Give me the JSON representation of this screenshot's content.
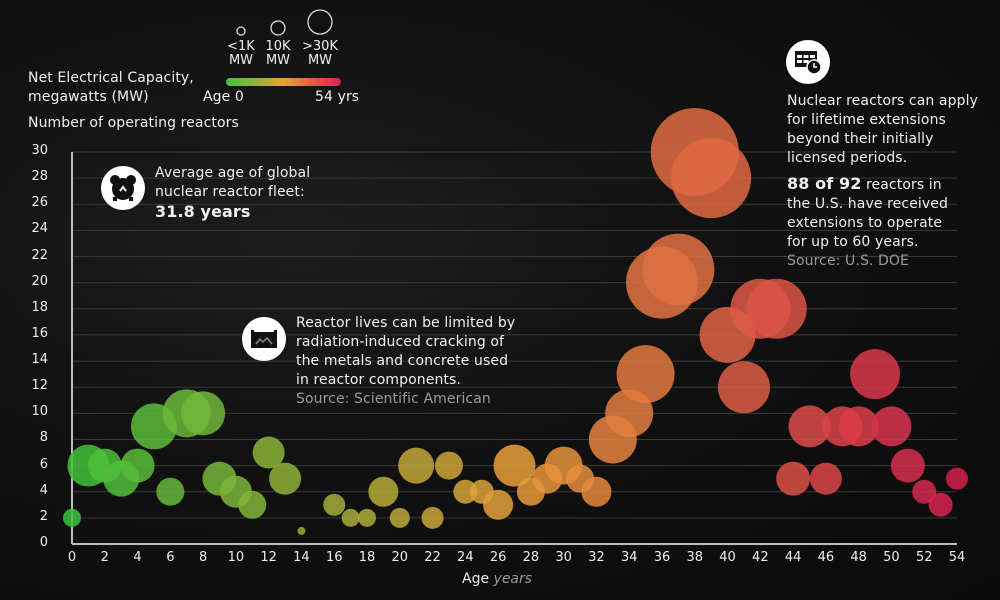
{
  "legend": {
    "size_title_line1": "Net Electrical Capacity,",
    "size_title_line2": "megawatts (MW)",
    "sizes": [
      {
        "label_line1": "<1K",
        "label_line2": "MW",
        "r": 4
      },
      {
        "label_line1": "10K",
        "label_line2": "MW",
        "r": 7
      },
      {
        "label_line1": ">30K",
        "label_line2": "MW",
        "r": 12
      }
    ],
    "color_min_label": "Age 0",
    "color_max_label": "54 yrs",
    "colors": {
      "start": "#3ec23a",
      "mid": "#e8a03a",
      "end": "#d6214f"
    }
  },
  "annotations": {
    "avg_age": {
      "icon": "alarm-clock-icon",
      "line1": "Average age of global",
      "line2": "nuclear reactor fleet:",
      "value": "31.8 years"
    },
    "cracking": {
      "icon": "cracked-metal-icon",
      "line1": "Reactor lives can be limited by",
      "line2": "radiation-induced cracking of",
      "line3": "the metals and concrete used",
      "line4": "in reactor components.",
      "source": "Source: Scientific American"
    },
    "extensions": {
      "icon": "calendar-clock-icon",
      "line1": "Nuclear reactors can apply",
      "line2": "for lifetime extensions",
      "line3": "beyond their initially",
      "line4": "licensed periods.",
      "bold": "88 of 92",
      "line5_rest": " reactors in",
      "line6": "the U.S. have received",
      "line7": "extensions to operate",
      "line8": "for up to 60 years.",
      "source": "Source: U.S. DOE"
    }
  },
  "chart_data": {
    "type": "scatter",
    "subtype": "bubble",
    "title": "",
    "xlabel": "Age",
    "xlabel_unit": "years",
    "ylabel": "Number of operating reactors",
    "xlim": [
      0,
      54
    ],
    "ylim": [
      0,
      30
    ],
    "x_ticks": [
      0,
      2,
      4,
      6,
      8,
      10,
      12,
      14,
      16,
      18,
      20,
      22,
      24,
      26,
      28,
      30,
      32,
      34,
      36,
      38,
      40,
      42,
      44,
      46,
      48,
      50,
      52,
      54
    ],
    "y_ticks": [
      0,
      2,
      4,
      6,
      8,
      10,
      12,
      14,
      16,
      18,
      20,
      22,
      24,
      26,
      28,
      30
    ],
    "grid": true,
    "size_encoding": "Net Electrical Capacity (MW)",
    "color_encoding": "Age (0 green to 54 crimson)",
    "points": [
      {
        "age": 0,
        "reactors": 2,
        "r": 9
      },
      {
        "age": 1,
        "reactors": 6,
        "r": 21
      },
      {
        "age": 2,
        "reactors": 6,
        "r": 17
      },
      {
        "age": 3,
        "reactors": 5,
        "r": 18
      },
      {
        "age": 4,
        "reactors": 6,
        "r": 17
      },
      {
        "age": 5,
        "reactors": 9,
        "r": 23
      },
      {
        "age": 6,
        "reactors": 4,
        "r": 14
      },
      {
        "age": 7,
        "reactors": 10,
        "r": 24
      },
      {
        "age": 8,
        "reactors": 10,
        "r": 22
      },
      {
        "age": 9,
        "reactors": 5,
        "r": 17
      },
      {
        "age": 10,
        "reactors": 4,
        "r": 16
      },
      {
        "age": 11,
        "reactors": 3,
        "r": 14
      },
      {
        "age": 12,
        "reactors": 7,
        "r": 16
      },
      {
        "age": 13,
        "reactors": 5,
        "r": 16
      },
      {
        "age": 14,
        "reactors": 1,
        "r": 4
      },
      {
        "age": 16,
        "reactors": 3,
        "r": 11
      },
      {
        "age": 17,
        "reactors": 2,
        "r": 9
      },
      {
        "age": 18,
        "reactors": 2,
        "r": 9
      },
      {
        "age": 19,
        "reactors": 4,
        "r": 15
      },
      {
        "age": 20,
        "reactors": 2,
        "r": 10
      },
      {
        "age": 21,
        "reactors": 6,
        "r": 18
      },
      {
        "age": 22,
        "reactors": 2,
        "r": 11
      },
      {
        "age": 23,
        "reactors": 6,
        "r": 14
      },
      {
        "age": 24,
        "reactors": 4,
        "r": 12
      },
      {
        "age": 25,
        "reactors": 4,
        "r": 12
      },
      {
        "age": 26,
        "reactors": 3,
        "r": 15
      },
      {
        "age": 27,
        "reactors": 6,
        "r": 21
      },
      {
        "age": 28,
        "reactors": 4,
        "r": 14
      },
      {
        "age": 29,
        "reactors": 5,
        "r": 15
      },
      {
        "age": 30,
        "reactors": 6,
        "r": 19
      },
      {
        "age": 31,
        "reactors": 5,
        "r": 14
      },
      {
        "age": 32,
        "reactors": 4,
        "r": 15
      },
      {
        "age": 33,
        "reactors": 8,
        "r": 24
      },
      {
        "age": 34,
        "reactors": 10,
        "r": 24
      },
      {
        "age": 35,
        "reactors": 13,
        "r": 29
      },
      {
        "age": 36,
        "reactors": 20,
        "r": 36
      },
      {
        "age": 37,
        "reactors": 21,
        "r": 36
      },
      {
        "age": 38,
        "reactors": 30,
        "r": 44
      },
      {
        "age": 39,
        "reactors": 28,
        "r": 40
      },
      {
        "age": 40,
        "reactors": 16,
        "r": 28
      },
      {
        "age": 41,
        "reactors": 12,
        "r": 26
      },
      {
        "age": 42,
        "reactors": 18,
        "r": 30
      },
      {
        "age": 43,
        "reactors": 18,
        "r": 30
      },
      {
        "age": 44,
        "reactors": 5,
        "r": 17
      },
      {
        "age": 45,
        "reactors": 9,
        "r": 21
      },
      {
        "age": 46,
        "reactors": 5,
        "r": 16
      },
      {
        "age": 47,
        "reactors": 9,
        "r": 20
      },
      {
        "age": 48,
        "reactors": 9,
        "r": 20
      },
      {
        "age": 49,
        "reactors": 13,
        "r": 25
      },
      {
        "age": 50,
        "reactors": 9,
        "r": 20
      },
      {
        "age": 51,
        "reactors": 6,
        "r": 17
      },
      {
        "age": 52,
        "reactors": 4,
        "r": 12
      },
      {
        "age": 53,
        "reactors": 3,
        "r": 12
      },
      {
        "age": 54,
        "reactors": 5,
        "r": 11
      }
    ]
  }
}
